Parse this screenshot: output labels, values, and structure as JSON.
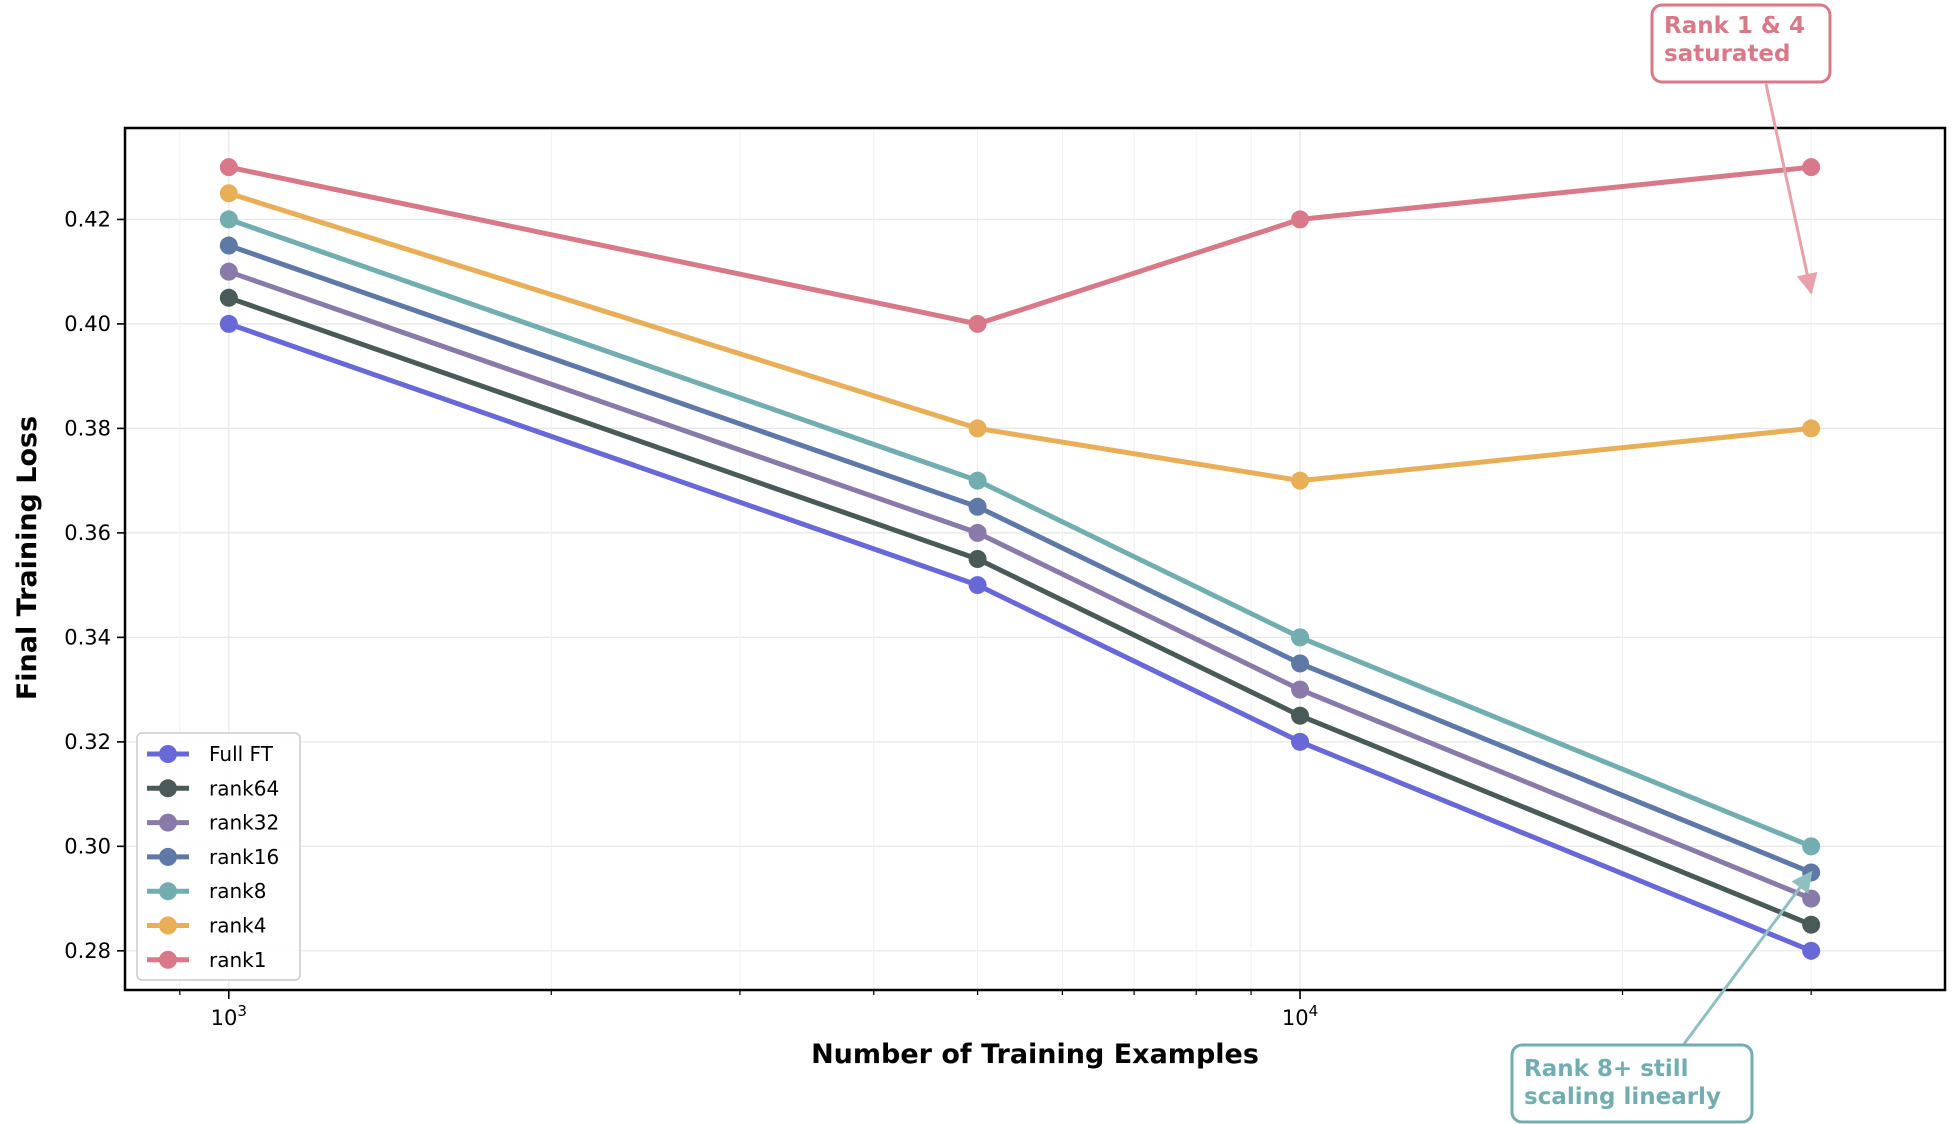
{
  "chart_data": {
    "type": "line",
    "title": "",
    "xlabel": "Number of Training Examples",
    "ylabel": "Final Training Loss",
    "xscale": "log",
    "x": [
      1000,
      5000,
      10000,
      30000
    ],
    "xlim": [
      800,
      40000
    ],
    "ylim": [
      0.2725,
      0.4375
    ],
    "x_ticks": [
      {
        "value": 1000,
        "base": "10",
        "exp": "3"
      },
      {
        "value": 10000,
        "base": "10",
        "exp": "4"
      }
    ],
    "y_ticks": [
      0.28,
      0.3,
      0.32,
      0.34,
      0.36,
      0.38,
      0.4,
      0.42
    ],
    "y_tick_labels": [
      "0.28",
      "0.30",
      "0.32",
      "0.34",
      "0.36",
      "0.38",
      "0.40",
      "0.42"
    ],
    "grid": true,
    "legend_position": "lower-left",
    "series": [
      {
        "name": "Full FT",
        "color": "#6868d8",
        "values": [
          0.4,
          0.35,
          0.32,
          0.28
        ]
      },
      {
        "name": "rank64",
        "color": "#4a5a58",
        "values": [
          0.405,
          0.355,
          0.325,
          0.285
        ]
      },
      {
        "name": "rank32",
        "color": "#8a7aaa",
        "values": [
          0.41,
          0.36,
          0.33,
          0.29
        ]
      },
      {
        "name": "rank16",
        "color": "#5e78a8",
        "values": [
          0.415,
          0.365,
          0.335,
          0.295
        ]
      },
      {
        "name": "rank8",
        "color": "#72aeb0",
        "values": [
          0.42,
          0.37,
          0.34,
          0.3
        ]
      },
      {
        "name": "rank4",
        "color": "#e8ae58",
        "values": [
          0.425,
          0.38,
          0.37,
          0.38
        ]
      },
      {
        "name": "rank1",
        "color": "#d87888",
        "values": [
          0.43,
          0.4,
          0.42,
          0.43
        ]
      }
    ],
    "annotations": [
      {
        "text_lines": [
          "Rank 1 & 4",
          "saturated"
        ],
        "color": "#d87888",
        "target": {
          "x": 30000,
          "y": 0.406
        }
      },
      {
        "text_lines": [
          "Rank 8+ still",
          "scaling linearly"
        ],
        "color": "#72aeb0",
        "target": {
          "x": 30000,
          "y": 0.295
        }
      }
    ]
  }
}
